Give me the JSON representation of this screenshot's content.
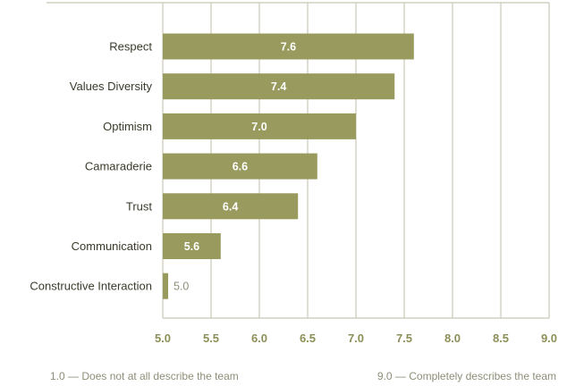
{
  "colors": {
    "bar": "#999b5e",
    "grid": "#c8c8b4",
    "tick_label": "#8d8f58",
    "category_label": "#3a3a2a",
    "footnote": "#8e8e78"
  },
  "footnotes": {
    "left": "1.0 — Does not at all describe the team",
    "right": "9.0 — Completely describes the team"
  },
  "chart_data": {
    "type": "bar",
    "orientation": "horizontal",
    "categories": [
      "Respect",
      "Values Diversity",
      "Optimism",
      "Camaraderie",
      "Trust",
      "Communication",
      "Constructive Interaction"
    ],
    "values": [
      7.6,
      7.4,
      7.0,
      6.6,
      6.4,
      5.6,
      5.0
    ],
    "value_labels": [
      "7.6",
      "7.4",
      "7.0",
      "6.6",
      "6.4",
      "5.6",
      "5.0"
    ],
    "xlim": [
      5.0,
      9.0
    ],
    "xticks": [
      "5.0",
      "5.5",
      "6.0",
      "6.5",
      "7.0",
      "7.5",
      "8.0",
      "8.5",
      "9.0"
    ],
    "grid": true,
    "title": "",
    "xlabel": "",
    "ylabel": ""
  }
}
